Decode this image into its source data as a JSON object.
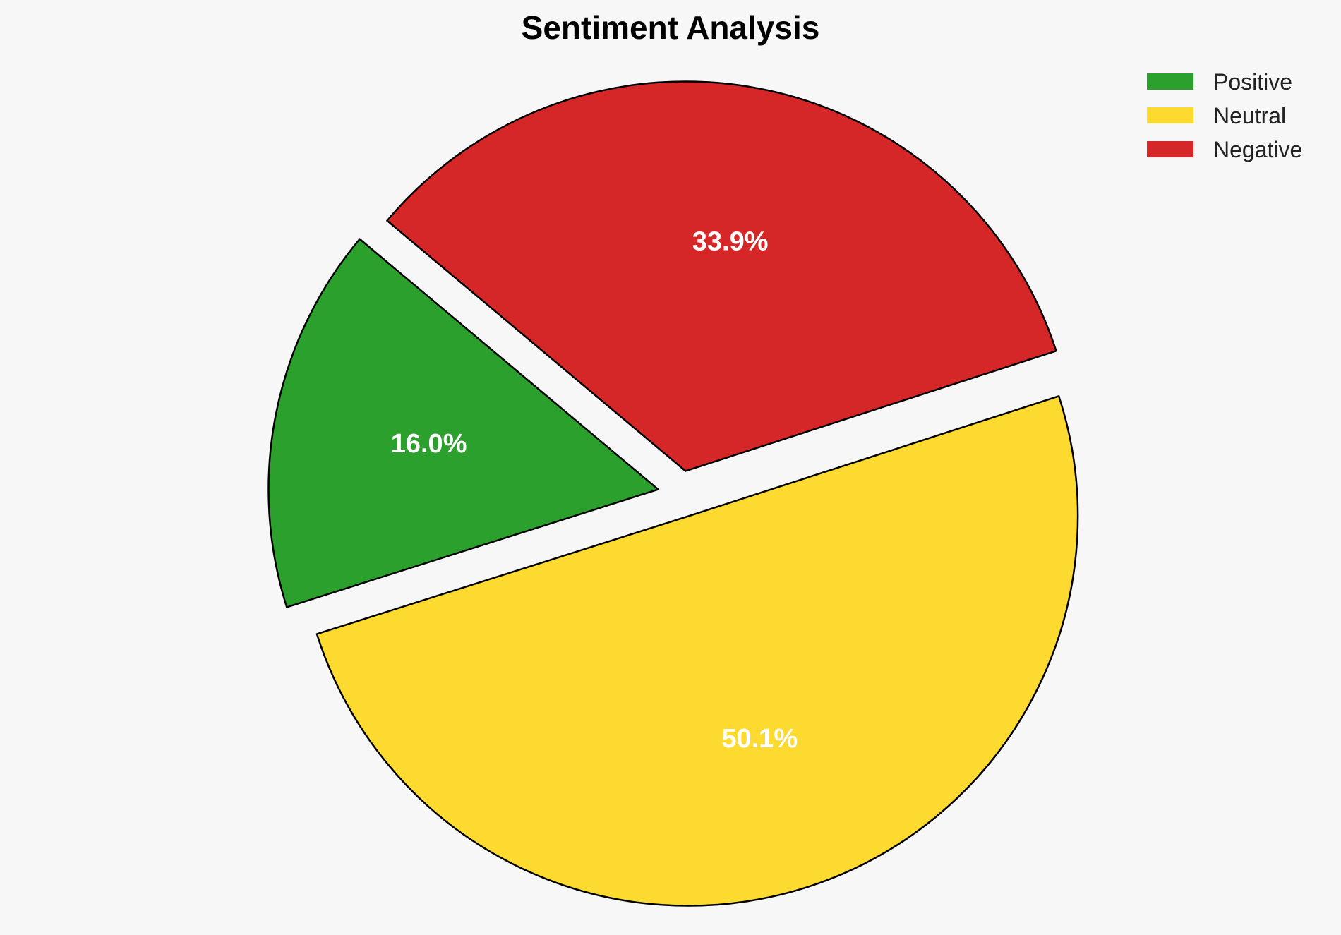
{
  "chart_data": {
    "type": "pie",
    "title": "Sentiment Analysis",
    "categories": [
      "Positive",
      "Neutral",
      "Negative"
    ],
    "values": [
      16.0,
      50.1,
      33.9
    ],
    "labels": [
      "16.0%",
      "50.1%",
      "33.9%"
    ],
    "colors": [
      "#2ca02c",
      "#fdda30",
      "#d62728"
    ],
    "exploded": true,
    "edge_color": "#000000",
    "legend_position": "top-right"
  }
}
